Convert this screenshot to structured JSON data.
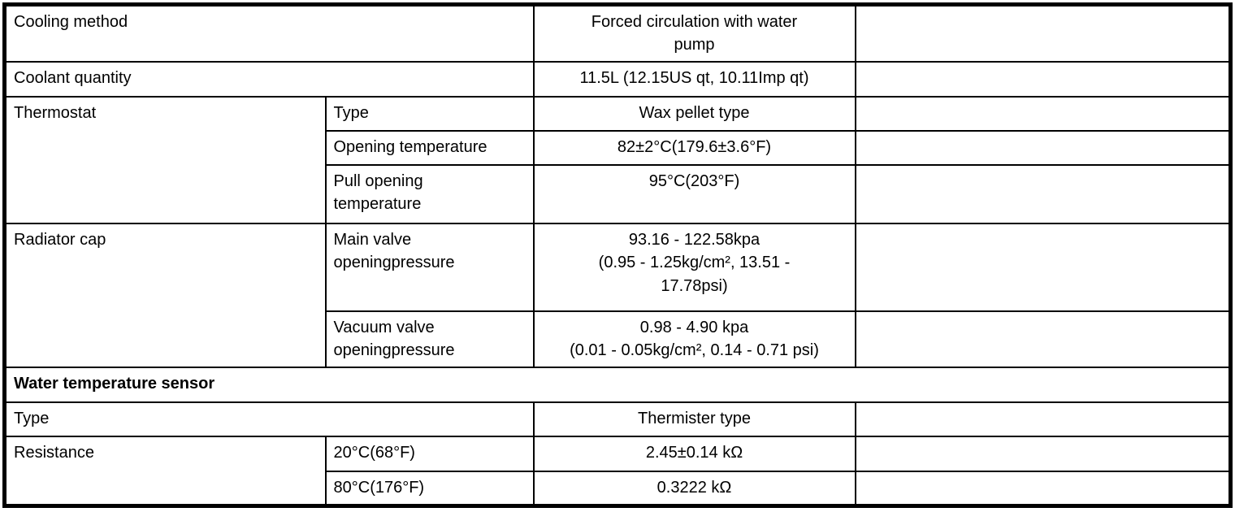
{
  "document": {
    "kind": "cooling-system-specifications-table",
    "colors": {
      "text": "#000000",
      "border": "#000000",
      "background": "#ffffff"
    },
    "rows": [
      {
        "cells": [
          {
            "text": "Cooling method"
          },
          {
            "text": "Forced circulation with water\npump"
          },
          {
            "text": ""
          }
        ]
      },
      {
        "cells": [
          {
            "text": "Coolant quantity"
          },
          {
            "text": "11.5L (12.15US qt, 10.11Imp qt)"
          },
          {
            "text": ""
          }
        ]
      },
      {
        "cells": [
          {
            "text": "Thermostat"
          },
          {
            "text": "Type"
          },
          {
            "text": "Wax pellet type"
          },
          {
            "text": ""
          }
        ]
      },
      {
        "cells": [
          {
            "text": "Opening temperature"
          },
          {
            "text": "82±2°C(179.6±3.6°F)"
          },
          {
            "text": ""
          }
        ]
      },
      {
        "cells": [
          {
            "text": "Pull opening\ntemperature"
          },
          {
            "text": "95°C(203°F)"
          },
          {
            "text": ""
          }
        ]
      },
      {
        "cells": [
          {
            "text": "Radiator cap"
          },
          {
            "text": "Main valve\nopeningpressure"
          },
          {
            "text": "93.16 - 122.58kpa\n(0.95 - 1.25kg/cm², 13.51 -\n17.78psi)"
          },
          {
            "text": ""
          }
        ]
      },
      {
        "cells": [
          {
            "text": "Vacuum valve\nopeningpressure"
          },
          {
            "text": "0.98 - 4.90 kpa\n(0.01 - 0.05kg/cm², 0.14 - 0.71 psi)"
          },
          {
            "text": ""
          }
        ]
      },
      {
        "cells": [
          {
            "text": "Water temperature sensor"
          }
        ]
      },
      {
        "cells": [
          {
            "text": "Type"
          },
          {
            "text": "Thermister type"
          },
          {
            "text": ""
          }
        ]
      },
      {
        "cells": [
          {
            "text": "Resistance"
          },
          {
            "text": "20°C(68°F)"
          },
          {
            "text": "2.45±0.14 kΩ"
          },
          {
            "text": ""
          }
        ]
      },
      {
        "cells": [
          {
            "text": "80°C(176°F)"
          },
          {
            "text": "0.3222 kΩ"
          },
          {
            "text": ""
          }
        ]
      }
    ]
  }
}
